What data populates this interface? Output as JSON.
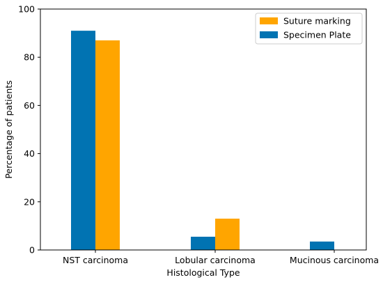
{
  "chart_data": {
    "type": "bar",
    "title": "",
    "xlabel": "Histological Type",
    "ylabel": "Percentage of patients",
    "categories": [
      "NST carcinoma",
      "Lobular carcinoma",
      "Mucinous carcinoma"
    ],
    "series": [
      {
        "name": "Specimen Plate",
        "color": "#0173b2",
        "values": [
          91,
          5.5,
          3.5
        ]
      },
      {
        "name": "Suture marking",
        "color": "#ffa500",
        "values": [
          87,
          13,
          0
        ]
      }
    ],
    "legend_order": [
      "Suture marking",
      "Specimen Plate"
    ],
    "legend_position": "top-right",
    "ylim": [
      0,
      100
    ],
    "yticks": [
      0,
      20,
      40,
      60,
      80,
      100
    ],
    "grid": false
  }
}
